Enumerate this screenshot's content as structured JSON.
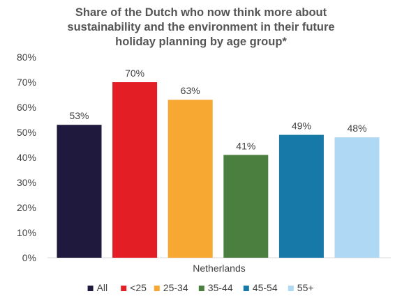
{
  "chart_data": {
    "type": "bar",
    "title_lines": [
      "Share of the Dutch who now think more about",
      "sustainability and the environment in their future",
      "holiday planning by age group*"
    ],
    "xlabel": "",
    "ylabel": "",
    "categories": [
      "Netherlands"
    ],
    "ylim": [
      0,
      80
    ],
    "yticks": [
      0,
      10,
      20,
      30,
      40,
      50,
      60,
      70,
      80
    ],
    "ytick_labels": [
      "0%",
      "10%",
      "20%",
      "30%",
      "40%",
      "50%",
      "60%",
      "70%",
      "80%"
    ],
    "grid": false,
    "legend_position": "bottom",
    "series": [
      {
        "name": "All",
        "values": [
          53
        ],
        "label": "53%",
        "color": "#1f1a3d"
      },
      {
        "name": "<25",
        "values": [
          70
        ],
        "label": "70%",
        "color": "#e31e24"
      },
      {
        "name": "25-34",
        "values": [
          63
        ],
        "label": "63%",
        "color": "#f7a833"
      },
      {
        "name": "35-44",
        "values": [
          41
        ],
        "label": "41%",
        "color": "#4a7f3f"
      },
      {
        "name": "45-54",
        "values": [
          49
        ],
        "label": "49%",
        "color": "#1679a8"
      },
      {
        "name": "55+",
        "values": [
          48
        ],
        "label": "48%",
        "color": "#aed8f3"
      }
    ]
  }
}
